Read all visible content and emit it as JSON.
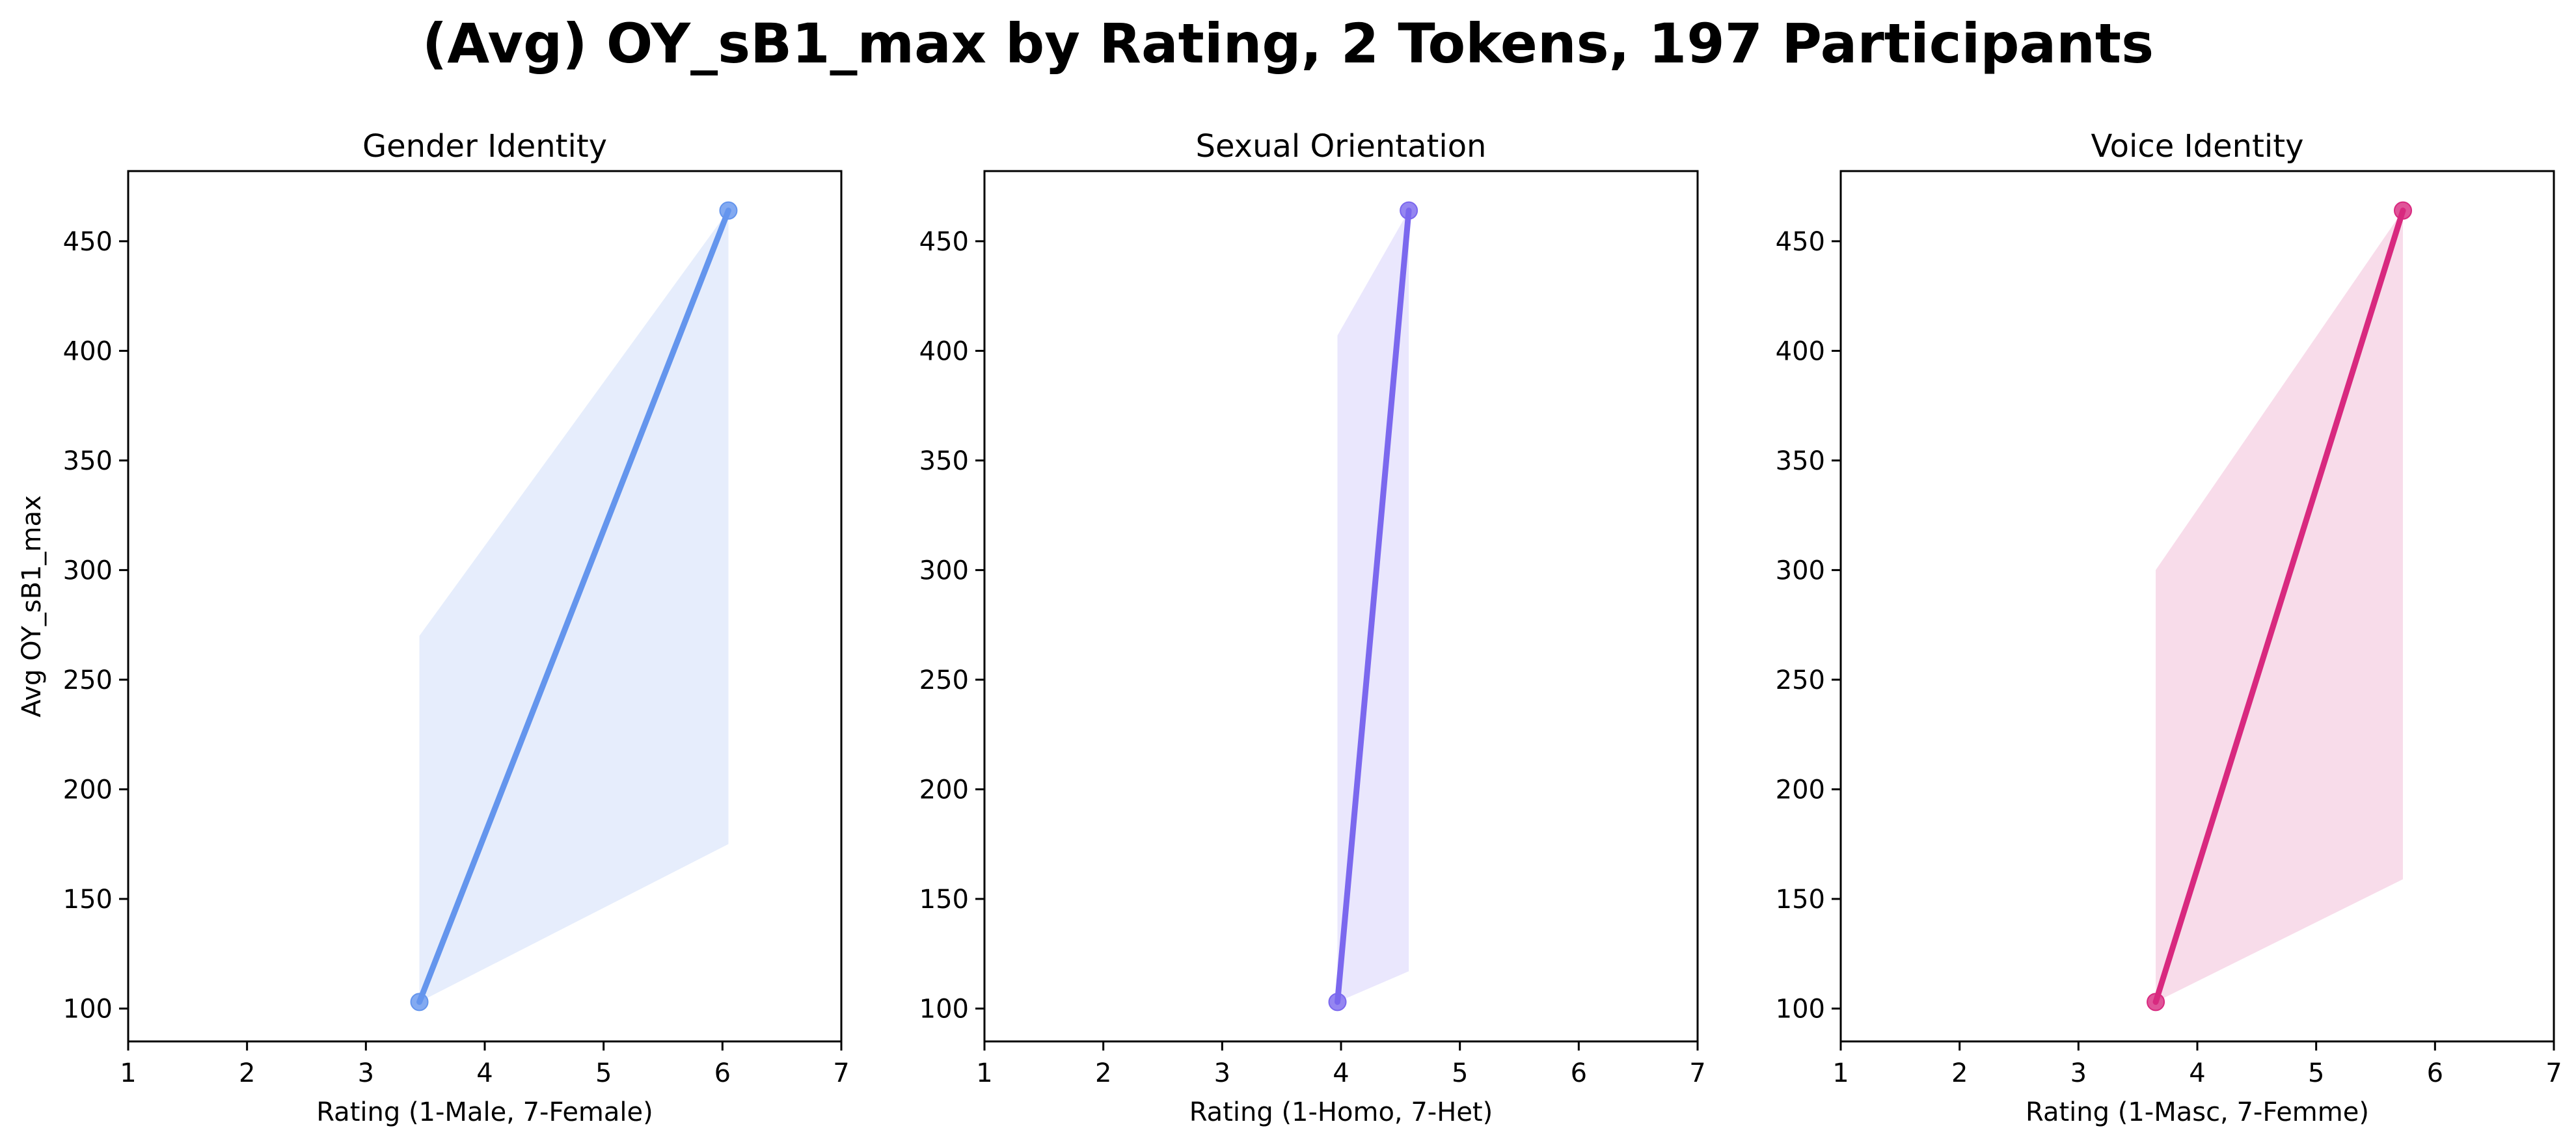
{
  "figure": {
    "title": "(Avg) OY_sB1_max by Rating, 2 Tokens, 197 Participants"
  },
  "chart_data": [
    {
      "type": "line",
      "title": "Gender Identity",
      "xlabel": "Rating (1-Male, 7-Female)",
      "ylabel": "Avg OY_sB1_max",
      "xlim": [
        1,
        7
      ],
      "ylim": [
        85,
        482
      ],
      "xticks": [
        "1",
        "2",
        "3",
        "4",
        "5",
        "6",
        "7"
      ],
      "yticks": [
        "100",
        "150",
        "200",
        "250",
        "300",
        "350",
        "400",
        "450"
      ],
      "color": "#6495ED",
      "band_color": "#E6EDFC",
      "series": [
        {
          "x": [
            3.45,
            6.05
          ],
          "y": [
            103,
            464
          ],
          "band": {
            "x": [
              3.45,
              6.05
            ],
            "lower": [
              103,
              175
            ],
            "upper": [
              270,
              464
            ]
          }
        }
      ],
      "grid": false,
      "legend": "none"
    },
    {
      "type": "line",
      "title": "Sexual Orientation",
      "xlabel": "Rating (1-Homo, 7-Het)",
      "ylabel": "",
      "xlim": [
        1,
        7
      ],
      "ylim": [
        85,
        482
      ],
      "xticks": [
        "1",
        "2",
        "3",
        "4",
        "5",
        "6",
        "7"
      ],
      "yticks": [
        "100",
        "150",
        "200",
        "250",
        "300",
        "350",
        "400",
        "450"
      ],
      "color": "#7B68EE",
      "band_color": "#EAE7FD",
      "series": [
        {
          "x": [
            3.97,
            4.57
          ],
          "y": [
            103,
            464
          ],
          "band": {
            "x": [
              3.97,
              4.57
            ],
            "lower": [
              103,
              117
            ],
            "upper": [
              407,
              464
            ]
          }
        }
      ],
      "grid": false,
      "legend": "none"
    },
    {
      "type": "line",
      "title": "Voice Identity",
      "xlabel": "Rating (1-Masc, 7-Femme)",
      "ylabel": "",
      "xlim": [
        1,
        7
      ],
      "ylim": [
        85,
        482
      ],
      "xticks": [
        "1",
        "2",
        "3",
        "4",
        "5",
        "6",
        "7"
      ],
      "yticks": [
        "100",
        "150",
        "200",
        "250",
        "300",
        "350",
        "400",
        "450"
      ],
      "color": "#D8297F",
      "band_color": "#F8DCEA",
      "series": [
        {
          "x": [
            3.65,
            5.73
          ],
          "y": [
            103,
            464
          ],
          "band": {
            "x": [
              3.65,
              5.73
            ],
            "lower": [
              103,
              159
            ],
            "upper": [
              300,
              464
            ]
          }
        }
      ],
      "grid": false,
      "legend": "none"
    }
  ]
}
